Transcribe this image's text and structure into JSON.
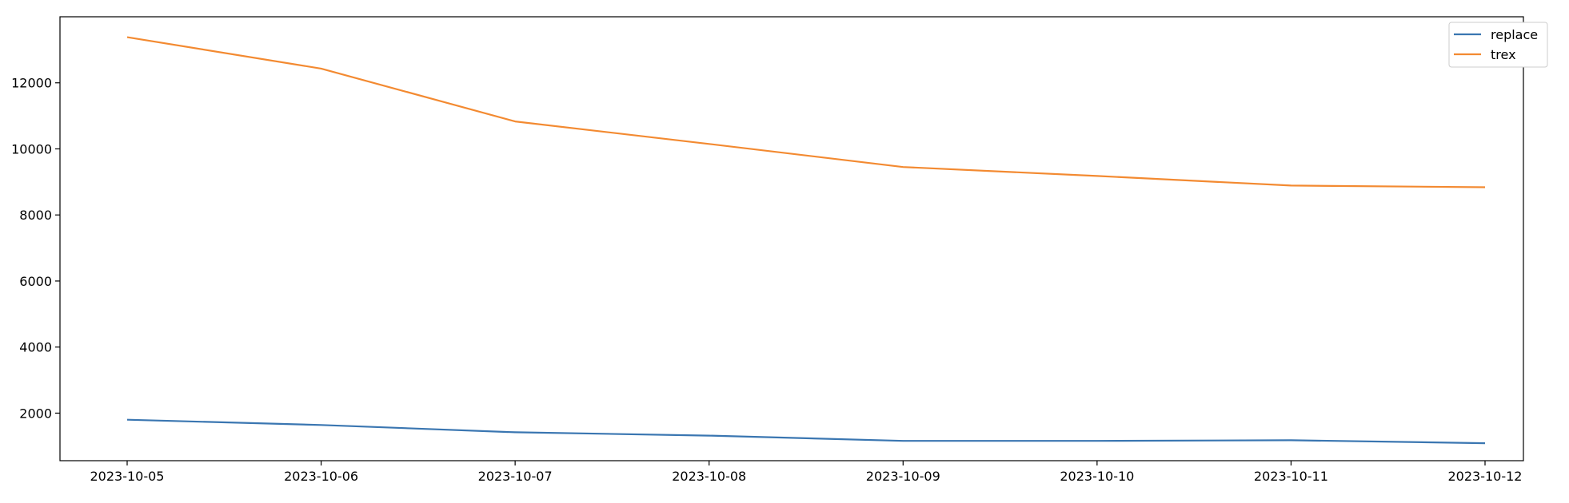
{
  "chart_data": {
    "type": "line",
    "title": "",
    "xlabel": "",
    "ylabel": "",
    "x": [
      "2023-10-05",
      "2023-10-06",
      "2023-10-07",
      "2023-10-08",
      "2023-10-09",
      "2023-10-10",
      "2023-10-11",
      "2023-10-12"
    ],
    "series": [
      {
        "name": "replace",
        "color": "#3a76b1",
        "values": [
          1800,
          1640,
          1420,
          1320,
          1160,
          1160,
          1180,
          1090
        ]
      },
      {
        "name": "trex",
        "color": "#f38a31",
        "values": [
          13380,
          12430,
          10830,
          10150,
          9450,
          9180,
          8890,
          8840
        ]
      }
    ],
    "ylim": [
      560,
      14000
    ],
    "yticks": [
      2000,
      4000,
      6000,
      8000,
      10000,
      12000
    ],
    "ytick_labels": [
      "2000",
      "4000",
      "6000",
      "8000",
      "10000",
      "12000"
    ],
    "grid": false,
    "legend": {
      "placement": "top-right",
      "entries": [
        "replace",
        "trex"
      ]
    }
  }
}
